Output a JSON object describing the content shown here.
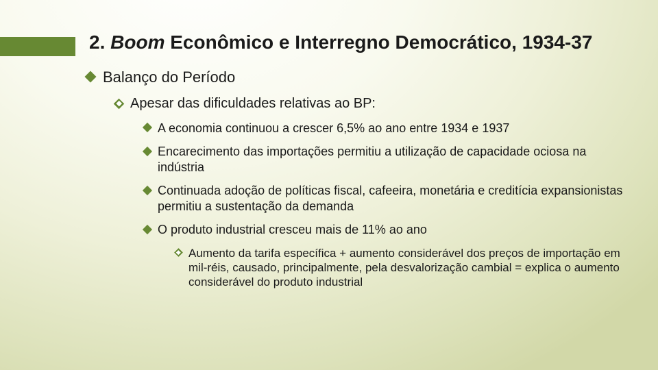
{
  "colors": {
    "accent": "#678933",
    "text": "#1a1a1a",
    "bg_gradient_inner": "#ffffff",
    "bg_gradient_mid1": "#f9faef",
    "bg_gradient_mid2": "#eef0d8",
    "bg_gradient_mid3": "#dde2bb",
    "bg_gradient_outer": "#d2d8a8"
  },
  "typography": {
    "title_fontsize": 28,
    "lvl1_fontsize": 22,
    "lvl2_fontsize": 20,
    "lvl3_fontsize": 18,
    "lvl4_fontsize": 17,
    "font_family": "Arial"
  },
  "title": {
    "prefix": "2. ",
    "italic": "Boom",
    "rest": " Econômico e Interregno Democrático, 1934-37"
  },
  "bullets": {
    "lvl1": "Balanço do Período",
    "lvl2": "Apesar das dificuldades relativas ao BP:",
    "lvl3": [
      "A economia continuou a crescer 6,5% ao ano entre 1934 e 1937",
      "Encarecimento das importações permitiu a utilização de capacidade ociosa na indústria",
      "Continuada adoção de políticas fiscal, cafeeira, monetária e creditícia expansionistas permitiu a sustentação da demanda",
      "O produto industrial cresceu mais de 11% ao ano"
    ],
    "lvl4": "Aumento da tarifa específica + aumento considerável dos preços de importação em mil-réis, causado, principalmente, pela desvalorização cambial = explica o aumento considerável do produto industrial"
  }
}
